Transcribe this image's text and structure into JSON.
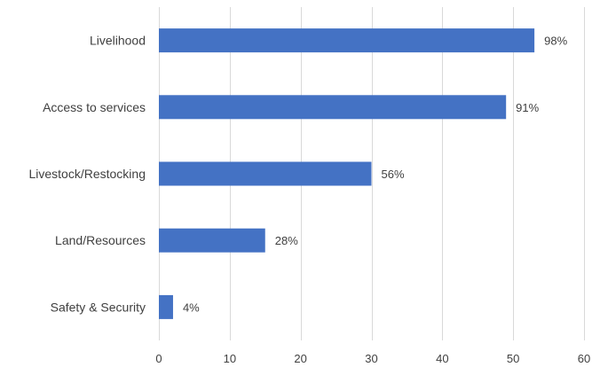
{
  "chart_data": {
    "type": "bar",
    "orientation": "horizontal",
    "categories": [
      "Livelihood",
      "Access to services",
      "Livestock/Restocking",
      "Land/Resources",
      "Safety & Security"
    ],
    "values": [
      53,
      49,
      30,
      15,
      2
    ],
    "data_labels": [
      "98%",
      "91%",
      "56%",
      "28%",
      "4%"
    ],
    "xlim": [
      0,
      60
    ],
    "x_ticks": [
      0,
      10,
      20,
      30,
      40,
      50,
      60
    ],
    "title": "",
    "xlabel": "",
    "ylabel": "",
    "grid": "vertical",
    "legend": "none",
    "bar_color": "#4472c4"
  }
}
